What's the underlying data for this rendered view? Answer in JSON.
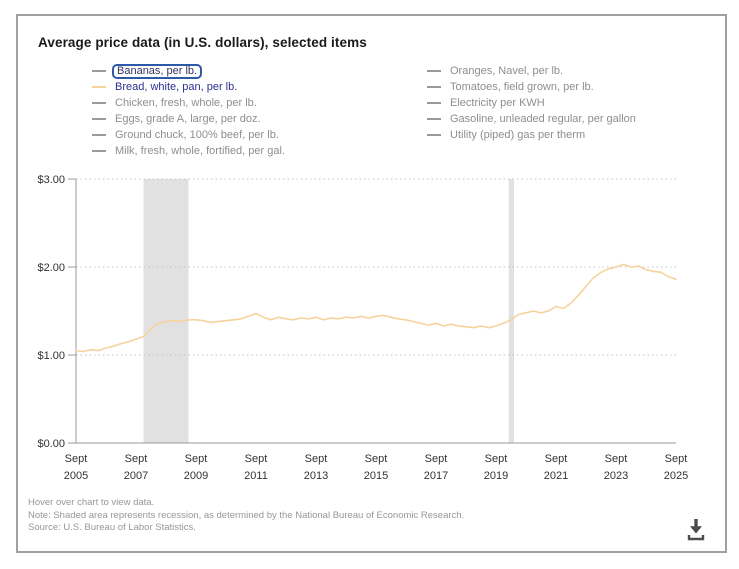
{
  "colors": {
    "accent_line": "#f6d39c",
    "focus_ring": "#2e59a8",
    "selected_text": "#2d2f92",
    "focused_text": "#333366",
    "muted_text": "#8e8e8e",
    "dash_gray": "#9a9a9a",
    "recession_band": "#e1e1e1",
    "axis": "#999999",
    "grid_dots": "#c2c2c2",
    "tick_text": "#333333",
    "title_text": "#1a1a1a",
    "download_icon": "#4d4d4d"
  },
  "card": {
    "title": "Average price data (in U.S. dollars), selected items",
    "footer": {
      "hover_note": "Hover over chart to view data.",
      "recession_note": "Note: Shaded area represents recession, as determined by the National Bureau of Economic Research.",
      "source_note": "Source: U.S. Bureau of Labor Statistics."
    },
    "icons": {
      "download": "download-arrow-into-tray"
    }
  },
  "legend": {
    "columns": [
      {
        "items": [
          {
            "label": "Bananas, per lb.",
            "dash_color": "#9a9a9a",
            "text_color": "#333366",
            "focused": true,
            "selected": false
          },
          {
            "label": "Bread, white, pan, per lb.",
            "dash_color": "#f6d39c",
            "text_color": "#2d2f92",
            "focused": false,
            "selected": true
          },
          {
            "label": "Chicken, fresh, whole, per lb.",
            "dash_color": "#9a9a9a",
            "text_color": "#8e8e8e",
            "focused": false,
            "selected": false
          },
          {
            "label": "Eggs, grade A, large, per doz.",
            "dash_color": "#9a9a9a",
            "text_color": "#8e8e8e",
            "focused": false,
            "selected": false
          },
          {
            "label": "Ground chuck, 100% beef, per lb.",
            "dash_color": "#9a9a9a",
            "text_color": "#8e8e8e",
            "focused": false,
            "selected": false
          },
          {
            "label": "Milk, fresh, whole, fortified, per gal.",
            "dash_color": "#9a9a9a",
            "text_color": "#8e8e8e",
            "focused": false,
            "selected": false
          }
        ]
      },
      {
        "items": [
          {
            "label": "Oranges, Navel, per lb.",
            "dash_color": "#9a9a9a",
            "text_color": "#8e8e8e",
            "focused": false,
            "selected": false
          },
          {
            "label": "Tomatoes, field grown, per lb.",
            "dash_color": "#9a9a9a",
            "text_color": "#8e8e8e",
            "focused": false,
            "selected": false
          },
          {
            "label": "Electricity per KWH",
            "dash_color": "#9a9a9a",
            "text_color": "#8e8e8e",
            "focused": false,
            "selected": false
          },
          {
            "label": "Gasoline, unleaded regular, per gallon",
            "dash_color": "#9a9a9a",
            "text_color": "#8e8e8e",
            "focused": false,
            "selected": false
          },
          {
            "label": "Utility (piped) gas per therm",
            "dash_color": "#9a9a9a",
            "text_color": "#8e8e8e",
            "focused": false,
            "selected": false
          }
        ]
      }
    ]
  },
  "chart_data": {
    "type": "line",
    "title": "Average price data (in U.S. dollars), selected items",
    "xlabel": "",
    "ylabel": "",
    "ylim": [
      0,
      3
    ],
    "grid": "dotted horizontal gridlines at each $1.00",
    "legend_position": "top",
    "x_start": "Sept 2005",
    "x_end": "Sept 2025",
    "frequency": "quarterly (estimated from monthly line)",
    "y_ticks": [
      {
        "label": "$0.00",
        "value": 0
      },
      {
        "label": "$1.00",
        "value": 1
      },
      {
        "label": "$2.00",
        "value": 2
      },
      {
        "label": "$3.00",
        "value": 3
      }
    ],
    "x_ticks": [
      {
        "month": "Sept",
        "year": "2005",
        "index": 0
      },
      {
        "month": "Sept",
        "year": "2007",
        "index": 8
      },
      {
        "month": "Sept",
        "year": "2009",
        "index": 16
      },
      {
        "month": "Sept",
        "year": "2011",
        "index": 24
      },
      {
        "month": "Sept",
        "year": "2013",
        "index": 32
      },
      {
        "month": "Sept",
        "year": "2015",
        "index": 40
      },
      {
        "month": "Sept",
        "year": "2017",
        "index": 48
      },
      {
        "month": "Sept",
        "year": "2019",
        "index": 56
      },
      {
        "month": "Sept",
        "year": "2021",
        "index": 64
      },
      {
        "month": "Sept",
        "year": "2023",
        "index": 72
      },
      {
        "month": "Sept",
        "year": "2025",
        "index": 80
      }
    ],
    "recession_bands": [
      {
        "start_index": 9,
        "end_index": 15
      },
      {
        "start_index": 57.7,
        "end_index": 58.4
      }
    ],
    "series": [
      {
        "name": "Bread, white, pan, per lb.",
        "color": "#f6d39c",
        "values": [
          1.05,
          1.04,
          1.06,
          1.05,
          1.08,
          1.1,
          1.13,
          1.15,
          1.18,
          1.21,
          1.3,
          1.36,
          1.38,
          1.39,
          1.38,
          1.4,
          1.4,
          1.39,
          1.37,
          1.38,
          1.39,
          1.4,
          1.41,
          1.44,
          1.47,
          1.43,
          1.4,
          1.43,
          1.41,
          1.4,
          1.42,
          1.41,
          1.43,
          1.4,
          1.42,
          1.41,
          1.43,
          1.42,
          1.44,
          1.42,
          1.44,
          1.45,
          1.43,
          1.41,
          1.4,
          1.38,
          1.36,
          1.34,
          1.36,
          1.33,
          1.35,
          1.33,
          1.32,
          1.31,
          1.33,
          1.31,
          1.33,
          1.36,
          1.4,
          1.46,
          1.48,
          1.5,
          1.48,
          1.5,
          1.55,
          1.53,
          1.59,
          1.68,
          1.78,
          1.88,
          1.94,
          1.98,
          2.0,
          2.03,
          2.0,
          2.01,
          1.97,
          1.95,
          1.94,
          1.89,
          1.86
        ]
      }
    ]
  }
}
